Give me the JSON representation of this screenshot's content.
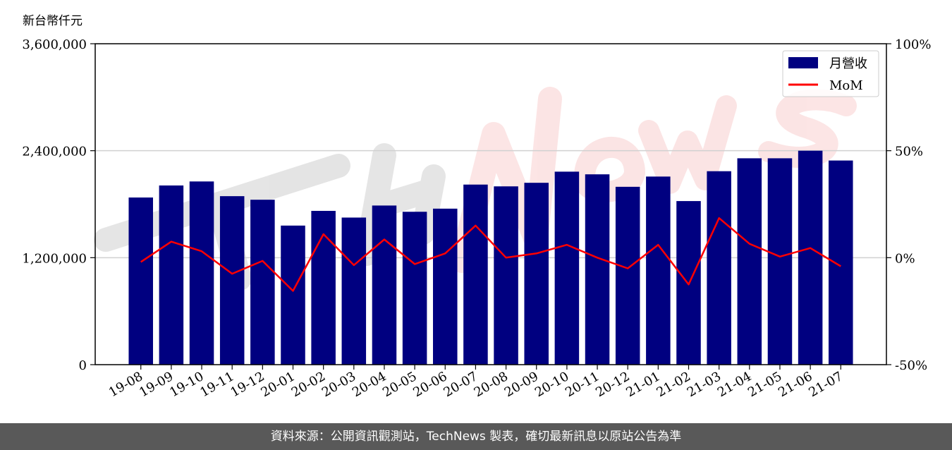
{
  "chart_data": {
    "type": "bar",
    "ylabel": "新台幣仟元",
    "categories": [
      "19-08",
      "19-09",
      "19-10",
      "19-11",
      "19-12",
      "20-01",
      "20-02",
      "20-03",
      "20-04",
      "20-05",
      "20-06",
      "20-07",
      "20-08",
      "20-09",
      "20-10",
      "20-11",
      "20-12",
      "21-01",
      "21-02",
      "21-03",
      "21-04",
      "21-05",
      "21-06",
      "21-07"
    ],
    "series": [
      {
        "name": "月營收",
        "type": "bar",
        "axis": "left",
        "color": "#000080",
        "values": [
          1875000,
          2010000,
          2055000,
          1890000,
          1850000,
          1560000,
          1725000,
          1650000,
          1785000,
          1715000,
          1750000,
          2020000,
          2000000,
          2040000,
          2165000,
          2135000,
          1995000,
          2110000,
          1835000,
          2170000,
          2315000,
          2315000,
          2400000,
          2290000
        ]
      },
      {
        "name": "MoM",
        "type": "line",
        "axis": "right",
        "color": "#ff0000",
        "values": [
          -2,
          7.5,
          3,
          -7.5,
          -1.5,
          -15.5,
          11,
          -3.5,
          8.5,
          -3,
          2,
          15,
          0,
          2,
          6,
          0,
          -5,
          6,
          -12.5,
          18.5,
          6.5,
          0.5,
          4.5,
          -4
        ]
      }
    ],
    "yticks": [
      "0",
      "1,200,000",
      "2,400,000",
      "3,600,000"
    ],
    "ylim": [
      0,
      3600000
    ],
    "y2ticks": [
      "-50%",
      "0%",
      "50%",
      "100%"
    ],
    "y2lim": [
      -50,
      100
    ],
    "grid": "horizontal",
    "legend_position": "top-right"
  },
  "footer": {
    "text": "資料來源：公開資訊觀測站，TechNews 製表，確切最新訊息以原站公告為準"
  }
}
